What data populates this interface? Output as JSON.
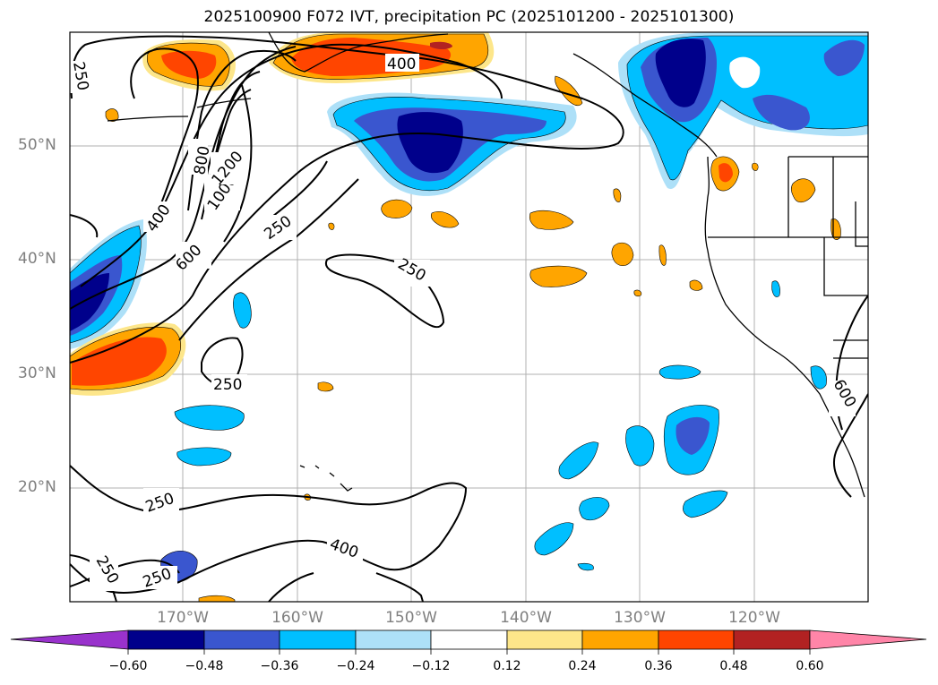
{
  "title": "2025100900 F072 IVT, precipitation PC (2025101200 - 2025101300)",
  "lat_labels": [
    "50°N",
    "40°N",
    "30°N",
    "20°N"
  ],
  "lon_labels": [
    "170°W",
    "160°W",
    "150°W",
    "140°W",
    "130°W",
    "120°W"
  ],
  "colorbar": {
    "ticks": [
      "−0.60",
      "−0.48",
      "−0.36",
      "−0.24",
      "−0.12",
      "0.12",
      "0.24",
      "0.36",
      "0.48",
      "0.60"
    ],
    "colors": [
      "#9932cc",
      "#00008b",
      "#3a56cf",
      "#00bfff",
      "#ade0f8",
      "#ffffff",
      "#fde68a",
      "#ffa500",
      "#ff4500",
      "#b22222",
      "#ff85a8"
    ]
  },
  "contour_labels": [
    "250",
    "400",
    "600",
    "800",
    "1000",
    "1200",
    "250",
    "250",
    "250",
    "250",
    "250",
    "400",
    "250",
    "250",
    "400",
    "600"
  ]
}
